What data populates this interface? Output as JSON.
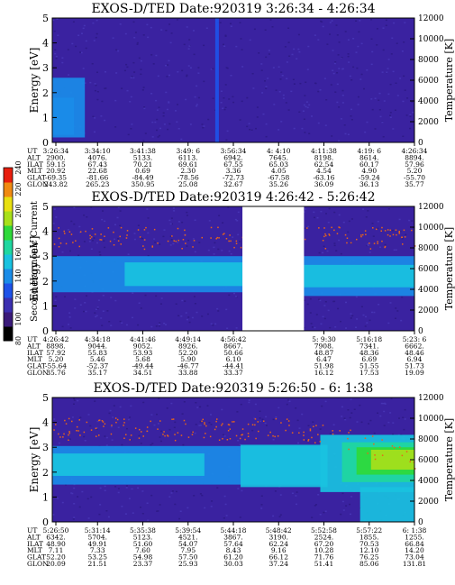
{
  "colorbar": {
    "label": "Second Harmonic Current",
    "ticks": [
      "80",
      "100",
      "120",
      "140",
      "160",
      "180",
      "200",
      "220",
      "240"
    ],
    "colors": [
      "#000000",
      "#3a1a7a",
      "#3b2fb0",
      "#1e52e8",
      "#1a8ce8",
      "#19c2e0",
      "#1fd7a0",
      "#2fd93a",
      "#a8e01a",
      "#e8e011",
      "#f08a12",
      "#e81e0e"
    ]
  },
  "chart_data": [
    {
      "type": "heatmap",
      "title": "EXOS-D/TED",
      "date_label": "Date:920319",
      "time_range": "3:26:34 - 4:26:34",
      "ylabel": "Energy [eV]",
      "ylim": [
        0,
        5
      ],
      "yticks": [
        "0",
        "1",
        "2",
        "3",
        "4",
        "5"
      ],
      "y2label": "Temperature [K]",
      "y2lim": [
        0,
        12000
      ],
      "y2ticks": [
        "0",
        "2000",
        "4000",
        "6000",
        "8000",
        "10000",
        "12000"
      ],
      "gaps": [],
      "bands": [
        {
          "t0": 0.0,
          "t1": 0.09,
          "e0": 0.2,
          "e1": 2.6,
          "level": 4
        },
        {
          "t0": 0.0,
          "t1": 0.06,
          "e0": 0.3,
          "e1": 1.8,
          "level": 4
        },
        {
          "t0": 0.45,
          "t1": 0.46,
          "e0": 0.0,
          "e1": 5.0,
          "level": 3
        }
      ],
      "table": {
        "row_labels": [
          "UT",
          "ALT",
          "ILAT",
          "MLT",
          "GLAT",
          "GLON"
        ],
        "columns": [
          [
            "3:26:34",
            "2900.",
            "59.15",
            "20.92",
            "-69.35",
            "243.82"
          ],
          [
            "3:34:10",
            "4076.",
            "67.43",
            "22.68",
            "-81.66",
            "265.23"
          ],
          [
            "3:41:38",
            "5133.",
            "70.21",
            "0.69",
            "-84.49",
            "350.95"
          ],
          [
            "3:49: 6",
            "6113.",
            "69.61",
            "2.30",
            "-78.56",
            "25.08"
          ],
          [
            "3:56:34",
            "6942.",
            "67.55",
            "3.36",
            "-72.73",
            "32.67"
          ],
          [
            "4: 4:10",
            "7645.",
            "65.03",
            "4.05",
            "-67.58",
            "35.26"
          ],
          [
            "4:11:38",
            "8198.",
            "62.54",
            "4.54",
            "-63.16",
            "36.09"
          ],
          [
            "4:19: 6",
            "8614.",
            "60.17",
            "4.90",
            "-59.24",
            "36.13"
          ],
          [
            "4:26:34",
            "8894.",
            "57.96",
            "5.20",
            "-55.70",
            "35.77"
          ]
        ]
      }
    },
    {
      "type": "heatmap",
      "title": "EXOS-D/TED",
      "date_label": "Date:920319",
      "time_range": "4:26:42 - 5:26:42",
      "ylabel": "Energy [eV]",
      "ylim": [
        0,
        5
      ],
      "yticks": [
        "0",
        "1",
        "2",
        "3",
        "4",
        "5"
      ],
      "y2label": "Temperature [K]",
      "y2lim": [
        0,
        12000
      ],
      "y2ticks": [
        "0",
        "2000",
        "4000",
        "6000",
        "8000",
        "10000",
        "12000"
      ],
      "gaps": [
        {
          "t0": 0.525,
          "t1": 0.695
        }
      ],
      "bands": [
        {
          "t0": 0.0,
          "t1": 0.525,
          "e0": 1.55,
          "e1": 3.0,
          "level": 4
        },
        {
          "t0": 0.2,
          "t1": 0.525,
          "e0": 1.8,
          "e1": 2.75,
          "level": 5
        },
        {
          "t0": 0.695,
          "t1": 1.0,
          "e0": 1.4,
          "e1": 3.0,
          "level": 4
        },
        {
          "t0": 0.695,
          "t1": 1.0,
          "e0": 1.75,
          "e1": 2.65,
          "level": 5
        }
      ],
      "table": {
        "row_labels": [
          "UT",
          "ALT",
          "ILAT",
          "MLT",
          "GLAT",
          "GLON"
        ],
        "columns": [
          [
            "4:26:42",
            "8898.",
            "57.92",
            "5.20",
            "-55.64",
            "35.76"
          ],
          [
            "4:34:18",
            "9044.",
            "55.83",
            "5.46",
            "-52.37",
            "35.17"
          ],
          [
            "4:41:46",
            "9052.",
            "53.93",
            "5.68",
            "-49.44",
            "34.51"
          ],
          [
            "4:49:14",
            "8926.",
            "52.20",
            "5.90",
            "-46.77",
            "33.88"
          ],
          [
            "4:56:42",
            "8667.",
            "50.66",
            "6.10",
            "-44.41",
            "33.37"
          ],
          [
            "",
            "",
            "",
            "",
            "",
            ""
          ],
          [
            "5: 9:30",
            "7908.",
            "48.87",
            "6.47",
            "51.98",
            "16.12"
          ],
          [
            "5:16:18",
            "7341.",
            "48.36",
            "6.69",
            "51.55",
            "17.53"
          ],
          [
            "5:23: 6",
            "6662.",
            "48.46",
            "6.94",
            "51.73",
            "19.09"
          ]
        ]
      }
    },
    {
      "type": "heatmap",
      "title": "EXOS-D/TED",
      "date_label": "Date:920319",
      "time_range": "5:26:50 - 6: 1:38",
      "ylabel": "Energy [eV]",
      "ylim": [
        0,
        5
      ],
      "yticks": [
        "0",
        "1",
        "2",
        "3",
        "4",
        "5"
      ],
      "y2label": "Temperature [K]",
      "y2lim": [
        0,
        12000
      ],
      "y2ticks": [
        "0",
        "2000",
        "4000",
        "6000",
        "8000",
        "10000",
        "12000"
      ],
      "gaps": [],
      "bands": [
        {
          "t0": 0.0,
          "t1": 0.76,
          "e0": 1.5,
          "e1": 3.05,
          "level": 4
        },
        {
          "t0": 0.0,
          "t1": 0.42,
          "e0": 1.85,
          "e1": 2.75,
          "level": 5
        },
        {
          "t0": 0.52,
          "t1": 0.76,
          "e0": 1.4,
          "e1": 3.1,
          "level": 5
        },
        {
          "t0": 0.74,
          "t1": 1.0,
          "e0": 1.2,
          "e1": 3.5,
          "level": 5
        },
        {
          "t0": 0.8,
          "t1": 1.0,
          "e0": 1.6,
          "e1": 3.2,
          "level": 6
        },
        {
          "t0": 0.84,
          "t1": 1.0,
          "e0": 1.9,
          "e1": 3.0,
          "level": 7
        },
        {
          "t0": 0.88,
          "t1": 1.0,
          "e0": 2.1,
          "e1": 2.9,
          "level": 8
        },
        {
          "t0": 0.85,
          "t1": 1.0,
          "e0": 0.0,
          "e1": 1.4,
          "level": 5
        }
      ],
      "table": {
        "row_labels": [
          "UT",
          "ALT",
          "ILAT",
          "MLT",
          "GLAT",
          "GLON"
        ],
        "columns": [
          [
            "5:26:50",
            "6342.",
            "48.90",
            "7.11",
            "52.20",
            "20.09"
          ],
          [
            "5:31:14",
            "5704.",
            "49.91",
            "7.33",
            "53.25",
            "21.51"
          ],
          [
            "5:35:38",
            "5123.",
            "51.60",
            "7.60",
            "54.98",
            "23.37"
          ],
          [
            "5:39:54",
            "4521.",
            "54.07",
            "7.95",
            "57.50",
            "25.93"
          ],
          [
            "5:44:18",
            "3867.",
            "57.64",
            "8.43",
            "61.20",
            "30.03"
          ],
          [
            "5:48:42",
            "3190.",
            "62.24",
            "9.16",
            "66.12",
            "37.24"
          ],
          [
            "5:52:58",
            "2524.",
            "67.20",
            "10.28",
            "71.76",
            "51.41"
          ],
          [
            "5:57:22",
            "1855.",
            "70.53",
            "12.10",
            "76.25",
            "85.06"
          ],
          [
            "6: 1:38",
            "1255.",
            "66.84",
            "14.20",
            "73.04",
            "131.81"
          ]
        ]
      }
    }
  ]
}
